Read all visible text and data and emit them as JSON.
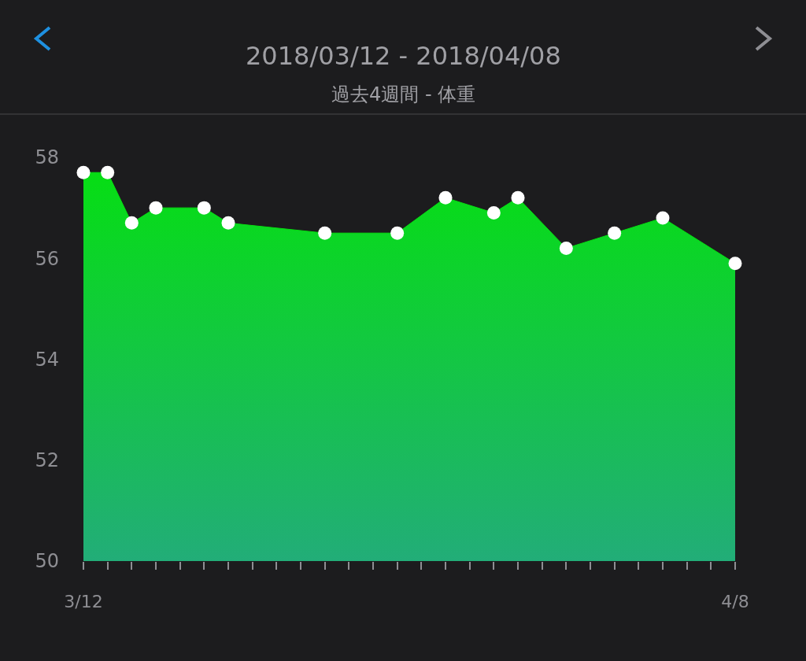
{
  "chart_data": {
    "type": "area",
    "title": "2018/03/12 - 2018/04/08",
    "subtitle": "過去4週間 - 体重",
    "series": [
      {
        "color": "#05e010",
        "x": [
          "2018-03-12",
          "2018-03-13",
          "2018-03-14",
          "2018-03-15",
          "2018-03-17",
          "2018-03-18",
          "2018-03-22",
          "2018-03-25",
          "2018-03-27",
          "2018-03-29",
          "2018-03-30",
          "2018-04-01",
          "2018-04-03",
          "2018-04-05",
          "2018-04-08"
        ],
        "values": [
          57.7,
          57.7,
          56.7,
          57.0,
          57.0,
          56.7,
          56.5,
          56.5,
          57.2,
          56.9,
          57.2,
          56.2,
          56.5,
          56.8,
          55.9
        ]
      }
    ],
    "xlim": [
      "2018-03-12",
      "2018-04-08"
    ],
    "xticks": [
      {
        "value": "2018-03-12",
        "label": "3/12"
      },
      {
        "value": "2018-03-13",
        "label": null
      },
      {
        "value": "2018-03-14",
        "label": null
      },
      {
        "value": "2018-03-15",
        "label": null
      },
      {
        "value": "2018-03-16",
        "label": null
      },
      {
        "value": "2018-03-17",
        "label": null
      },
      {
        "value": "2018-03-18",
        "label": null
      },
      {
        "value": "2018-03-19",
        "label": null
      },
      {
        "value": "2018-03-20",
        "label": null
      },
      {
        "value": "2018-03-21",
        "label": null
      },
      {
        "value": "2018-03-22",
        "label": null
      },
      {
        "value": "2018-03-23",
        "label": null
      },
      {
        "value": "2018-03-24",
        "label": null
      },
      {
        "value": "2018-03-25",
        "label": null
      },
      {
        "value": "2018-03-26",
        "label": null
      },
      {
        "value": "2018-03-27",
        "label": null
      },
      {
        "value": "2018-03-28",
        "label": null
      },
      {
        "value": "2018-03-29",
        "label": null
      },
      {
        "value": "2018-03-30",
        "label": null
      },
      {
        "value": "2018-03-31",
        "label": null
      },
      {
        "value": "2018-04-01",
        "label": null
      },
      {
        "value": "2018-04-02",
        "label": null
      },
      {
        "value": "2018-04-03",
        "label": null
      },
      {
        "value": "2018-04-04",
        "label": null
      },
      {
        "value": "2018-04-05",
        "label": null
      },
      {
        "value": "2018-04-06",
        "label": null
      },
      {
        "value": "2018-04-07",
        "label": null
      },
      {
        "value": "2018-04-08",
        "label": "4/8"
      }
    ],
    "ylim": [
      50,
      58
    ],
    "yticks": [
      50,
      52,
      54,
      56,
      58
    ],
    "marker": "circle",
    "grid": false
  }
}
